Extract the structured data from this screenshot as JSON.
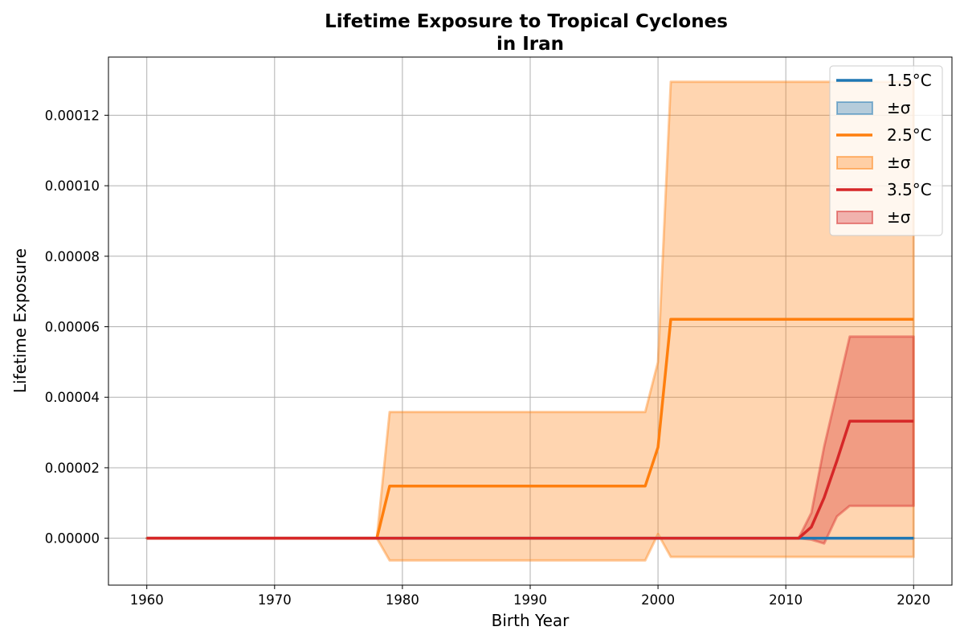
{
  "chart_data": {
    "type": "line",
    "title": "Lifetime Exposure to Tropical Cyclones",
    "subtitle": "in Iran",
    "xlabel": "Birth Year",
    "ylabel": "Lifetime Exposure",
    "xlim": [
      1957,
      2023
    ],
    "ylim": [
      -1.33e-05,
      0.0001365
    ],
    "xticks": [
      1960,
      1970,
      1980,
      1990,
      2000,
      2010,
      2020
    ],
    "yticks": [
      0,
      2e-05,
      4e-05,
      6e-05,
      8e-05,
      0.0001,
      0.00012
    ],
    "xtick_labels": [
      "1960",
      "1970",
      "1980",
      "1990",
      "2000",
      "2010",
      "2020"
    ],
    "ytick_labels": [
      "0.00000",
      "0.00002",
      "0.00004",
      "0.00006",
      "0.00008",
      "0.00010",
      "0.00012"
    ],
    "grid": true,
    "legend_position": "top-right",
    "series": [
      {
        "name": "1.5°C",
        "band_label": "±σ",
        "color": "#1f77b4",
        "x": [
          1960,
          2020
        ],
        "values": [
          0,
          0
        ],
        "lower": [
          0,
          0
        ],
        "upper": [
          0,
          0
        ]
      },
      {
        "name": "2.5°C",
        "band_label": "±σ",
        "color": "#ff7f0e",
        "x": [
          1960,
          1978,
          1979,
          1999,
          2000,
          2001,
          2020
        ],
        "values": [
          0,
          0,
          1.48e-05,
          1.48e-05,
          2.58e-05,
          6.21e-05,
          6.21e-05
        ],
        "lower": [
          0,
          0,
          -6.3e-06,
          -6.3e-06,
          1.2e-06,
          -5.3e-06,
          -5.3e-06
        ],
        "upper": [
          0,
          0,
          3.58e-05,
          3.58e-05,
          5e-05,
          0.0001295,
          0.0001295
        ]
      },
      {
        "name": "3.5°C",
        "band_label": "±σ",
        "color": "#d62728",
        "x": [
          1960,
          2011,
          2012,
          2013,
          2014,
          2015,
          2020
        ],
        "values": [
          0,
          0,
          3.2e-06,
          1.15e-05,
          2.2e-05,
          3.32e-05,
          3.32e-05
        ],
        "lower": [
          0,
          0,
          -4e-07,
          -1.5e-06,
          6.2e-06,
          9.2e-06,
          9.2e-06
        ],
        "upper": [
          0,
          0,
          7.2e-06,
          2.6e-05,
          4.15e-05,
          5.72e-05,
          5.72e-05
        ]
      }
    ]
  }
}
